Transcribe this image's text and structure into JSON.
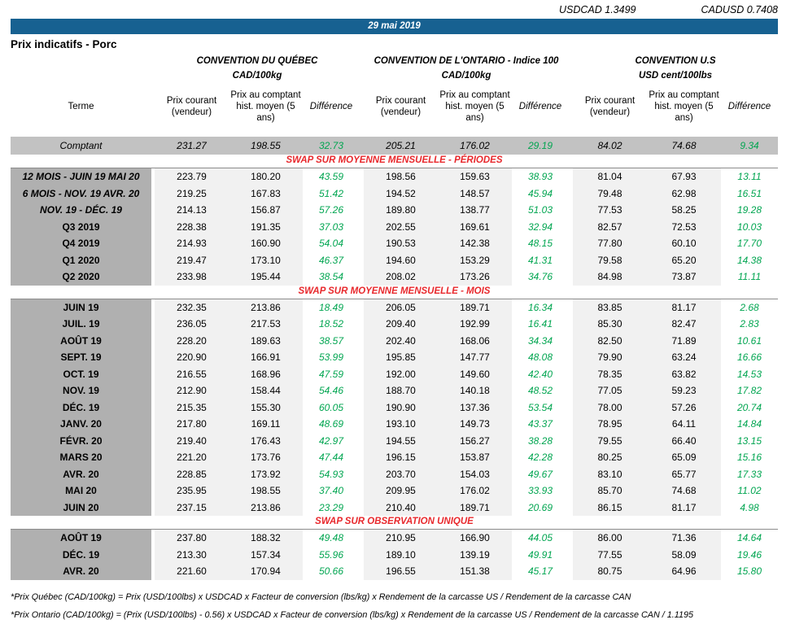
{
  "fx": {
    "usdcad": {
      "pair": "USDCAD",
      "rate": "1.3499"
    },
    "cadusd": {
      "pair": "CADUSD",
      "rate": "0.7408"
    }
  },
  "date_banner": "29 mai 2019",
  "page_title": "Prix indicatifs - Porc",
  "colors": {
    "accent_blue": "#176191",
    "section_red": "#e8282c",
    "positive_green": "#00a550",
    "label_gray": "#b0b0b0",
    "comptant_gray": "#c2c2c2",
    "cell_gray": "#f1f1f1"
  },
  "table": {
    "groups": [
      {
        "title": "CONVENTION DU QUÉBEC",
        "unit": "CAD/100kg"
      },
      {
        "title": "CONVENTION DE L'ONTARIO - Indice 100",
        "unit": "CAD/100kg"
      },
      {
        "title": "CONVENTION U.S",
        "unit": "USD cent/100lbs"
      }
    ],
    "columns": {
      "terme": "Terme",
      "prix_courant": "Prix courant (vendeur)",
      "prix_comptant": "Prix au comptant hist. moyen (5 ans)",
      "difference": "Différence"
    },
    "comptant_row": {
      "label": "Comptant",
      "italic": true,
      "values": [
        "231.27",
        "198.55",
        "32.73",
        "205.21",
        "176.02",
        "29.19",
        "84.02",
        "74.68",
        "9.34"
      ]
    },
    "sections": [
      {
        "title": "SWAP SUR MOYENNE MENSUELLE - PÉRIODES",
        "rows": [
          {
            "label": "12 MOIS - JUIN 19 MAI 20",
            "italic": true,
            "values": [
              "223.79",
              "180.20",
              "43.59",
              "198.56",
              "159.63",
              "38.93",
              "81.04",
              "67.93",
              "13.11"
            ]
          },
          {
            "label": "6 MOIS - NOV. 19 AVR. 20",
            "italic": true,
            "values": [
              "219.25",
              "167.83",
              "51.42",
              "194.52",
              "148.57",
              "45.94",
              "79.48",
              "62.98",
              "16.51"
            ]
          },
          {
            "label": "NOV. 19 - DÉC. 19",
            "italic": true,
            "values": [
              "214.13",
              "156.87",
              "57.26",
              "189.80",
              "138.77",
              "51.03",
              "77.53",
              "58.25",
              "19.28"
            ]
          },
          {
            "label": "Q3 2019",
            "italic": false,
            "values": [
              "228.38",
              "191.35",
              "37.03",
              "202.55",
              "169.61",
              "32.94",
              "82.57",
              "72.53",
              "10.03"
            ]
          },
          {
            "label": "Q4 2019",
            "italic": false,
            "values": [
              "214.93",
              "160.90",
              "54.04",
              "190.53",
              "142.38",
              "48.15",
              "77.80",
              "60.10",
              "17.70"
            ]
          },
          {
            "label": "Q1 2020",
            "italic": false,
            "values": [
              "219.47",
              "173.10",
              "46.37",
              "194.60",
              "153.29",
              "41.31",
              "79.58",
              "65.20",
              "14.38"
            ]
          },
          {
            "label": "Q2 2020",
            "italic": false,
            "values": [
              "233.98",
              "195.44",
              "38.54",
              "208.02",
              "173.26",
              "34.76",
              "84.98",
              "73.87",
              "11.11"
            ]
          }
        ]
      },
      {
        "title": "SWAP SUR MOYENNE MENSUELLE - MOIS",
        "rows": [
          {
            "label": "JUIN 19",
            "italic": false,
            "values": [
              "232.35",
              "213.86",
              "18.49",
              "206.05",
              "189.71",
              "16.34",
              "83.85",
              "81.17",
              "2.68"
            ]
          },
          {
            "label": "JUIL. 19",
            "italic": false,
            "values": [
              "236.05",
              "217.53",
              "18.52",
              "209.40",
              "192.99",
              "16.41",
              "85.30",
              "82.47",
              "2.83"
            ]
          },
          {
            "label": "AOÛT 19",
            "italic": false,
            "values": [
              "228.20",
              "189.63",
              "38.57",
              "202.40",
              "168.06",
              "34.34",
              "82.50",
              "71.89",
              "10.61"
            ]
          },
          {
            "label": "SEPT. 19",
            "italic": false,
            "values": [
              "220.90",
              "166.91",
              "53.99",
              "195.85",
              "147.77",
              "48.08",
              "79.90",
              "63.24",
              "16.66"
            ]
          },
          {
            "label": "OCT. 19",
            "italic": false,
            "values": [
              "216.55",
              "168.96",
              "47.59",
              "192.00",
              "149.60",
              "42.40",
              "78.35",
              "63.82",
              "14.53"
            ]
          },
          {
            "label": "NOV. 19",
            "italic": false,
            "values": [
              "212.90",
              "158.44",
              "54.46",
              "188.70",
              "140.18",
              "48.52",
              "77.05",
              "59.23",
              "17.82"
            ]
          },
          {
            "label": "DÉC. 19",
            "italic": false,
            "values": [
              "215.35",
              "155.30",
              "60.05",
              "190.90",
              "137.36",
              "53.54",
              "78.00",
              "57.26",
              "20.74"
            ]
          },
          {
            "label": "JANV. 20",
            "italic": false,
            "values": [
              "217.80",
              "169.11",
              "48.69",
              "193.10",
              "149.73",
              "43.37",
              "78.95",
              "64.11",
              "14.84"
            ]
          },
          {
            "label": "FÉVR. 20",
            "italic": false,
            "values": [
              "219.40",
              "176.43",
              "42.97",
              "194.55",
              "156.27",
              "38.28",
              "79.55",
              "66.40",
              "13.15"
            ]
          },
          {
            "label": "MARS 20",
            "italic": false,
            "values": [
              "221.20",
              "173.76",
              "47.44",
              "196.15",
              "153.87",
              "42.28",
              "80.25",
              "65.09",
              "15.16"
            ]
          },
          {
            "label": "AVR. 20",
            "italic": false,
            "values": [
              "228.85",
              "173.92",
              "54.93",
              "203.70",
              "154.03",
              "49.67",
              "83.10",
              "65.77",
              "17.33"
            ]
          },
          {
            "label": "MAI 20",
            "italic": false,
            "values": [
              "235.95",
              "198.55",
              "37.40",
              "209.95",
              "176.02",
              "33.93",
              "85.70",
              "74.68",
              "11.02"
            ]
          },
          {
            "label": "JUIN 20",
            "italic": false,
            "values": [
              "237.15",
              "213.86",
              "23.29",
              "210.40",
              "189.71",
              "20.69",
              "86.15",
              "81.17",
              "4.98"
            ]
          }
        ]
      },
      {
        "title": "SWAP SUR OBSERVATION UNIQUE",
        "rows": [
          {
            "label": "AOÛT 19",
            "italic": false,
            "values": [
              "237.80",
              "188.32",
              "49.48",
              "210.95",
              "166.90",
              "44.05",
              "86.00",
              "71.36",
              "14.64"
            ]
          },
          {
            "label": "DÉC. 19",
            "italic": false,
            "values": [
              "213.30",
              "157.34",
              "55.96",
              "189.10",
              "139.19",
              "49.91",
              "77.55",
              "58.09",
              "19.46"
            ]
          },
          {
            "label": "AVR. 20",
            "italic": false,
            "values": [
              "221.60",
              "170.94",
              "50.66",
              "196.55",
              "151.38",
              "45.17",
              "80.75",
              "64.96",
              "15.80"
            ]
          }
        ]
      }
    ],
    "footnotes": [
      "*Prix Québec (CAD/100kg) = Prix (USD/100lbs) x USDCAD x Facteur de conversion (lbs/kg) x Rendement de la carcasse US / Rendement de la carcasse CAN",
      "*Prix Ontario (CAD/100kg) = (Prix (USD/100lbs) - 0.56) x USDCAD x Facteur de conversion (lbs/kg) x Rendement de la carcasse US / Rendement de la carcasse CAN / 1.1195"
    ]
  }
}
